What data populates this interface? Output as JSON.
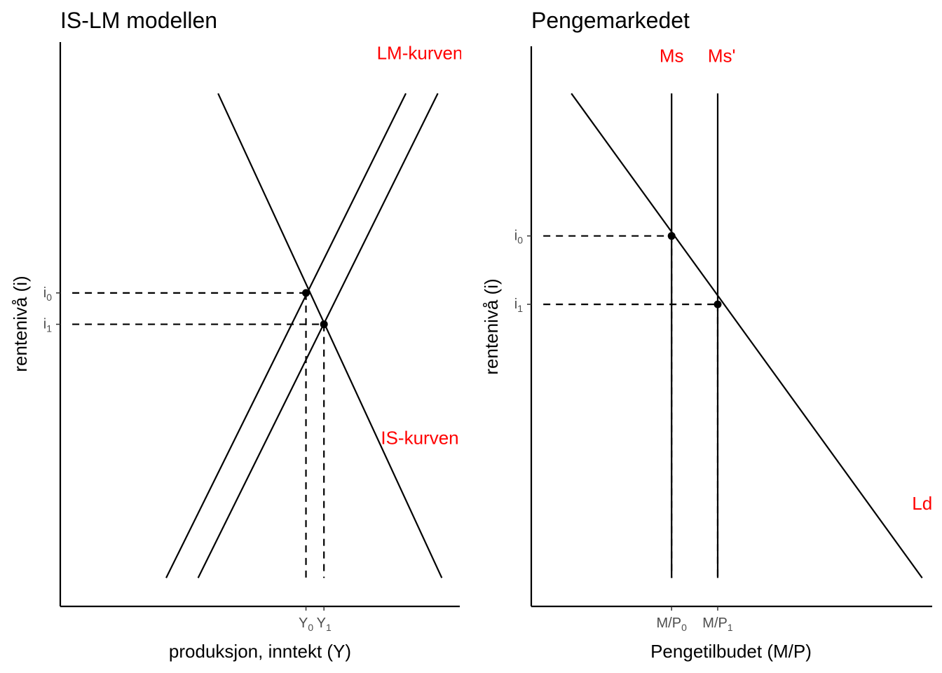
{
  "chart_data": [
    {
      "type": "line",
      "title": "IS-LM modellen",
      "xlabel": "produksjon, inntekt (Y)",
      "ylabel": "rentenivå (i)",
      "xlim": [
        0,
        20
      ],
      "ylim": [
        0,
        20
      ],
      "grid": false,
      "series": [
        {
          "name": "LM-kurven",
          "x": [
            5.3,
            17.3
          ],
          "y": [
            1,
            18
          ]
        },
        {
          "name": "LM-kurven",
          "x": [
            6.9,
            18.9
          ],
          "y": [
            1,
            18
          ]
        },
        {
          "name": "IS-kurven",
          "x": [
            7.9,
            19.1
          ],
          "y": [
            18,
            1
          ]
        }
      ],
      "labels": [
        {
          "text": "LM-kurven",
          "x": 18.0,
          "y": 19.2
        },
        {
          "text": "IS-kurven",
          "x": 18.0,
          "y": 5.7
        }
      ],
      "points": [
        {
          "x": 12.3,
          "y": 11.0
        },
        {
          "x": 13.2,
          "y": 9.9
        }
      ],
      "x_ticks": [
        {
          "value": 12.3,
          "main": "Y",
          "sub": "0"
        },
        {
          "value": 13.2,
          "main": "Y",
          "sub": "1"
        }
      ],
      "y_ticks": [
        {
          "value": 11.0,
          "main": "i",
          "sub": "0"
        },
        {
          "value": 9.9,
          "main": "i",
          "sub": "1"
        }
      ]
    },
    {
      "type": "line",
      "title": "Pengemarkedet",
      "xlabel": "Pengetilbudet (M/P)",
      "ylabel": "rentenivå (i)",
      "xlim": [
        0,
        20
      ],
      "ylim": [
        0,
        20
      ],
      "grid": false,
      "series": [
        {
          "name": "Ms",
          "x": [
            7,
            7
          ],
          "y": [
            1,
            18
          ]
        },
        {
          "name": "Ms'",
          "x": [
            9.3,
            9.3
          ],
          "y": [
            1,
            18
          ]
        },
        {
          "name": "Ld",
          "x": [
            2,
            19.5
          ],
          "y": [
            18,
            1
          ]
        }
      ],
      "labels": [
        {
          "text": "Ms",
          "x": 7.0,
          "y": 19.1
        },
        {
          "text": "Ms'",
          "x": 9.5,
          "y": 19.1
        },
        {
          "text": "Ld",
          "x": 19.5,
          "y": 3.4
        }
      ],
      "points": [
        {
          "x": 7.0,
          "y": 13.0
        },
        {
          "x": 9.3,
          "y": 10.6
        }
      ],
      "x_ticks": [
        {
          "value": 7.0,
          "main": "M/P",
          "sub": "0"
        },
        {
          "value": 9.3,
          "main": "M/P",
          "sub": "1"
        }
      ],
      "y_ticks": [
        {
          "value": 13.0,
          "main": "i",
          "sub": "0"
        },
        {
          "value": 10.6,
          "main": "i",
          "sub": "1"
        }
      ]
    }
  ]
}
